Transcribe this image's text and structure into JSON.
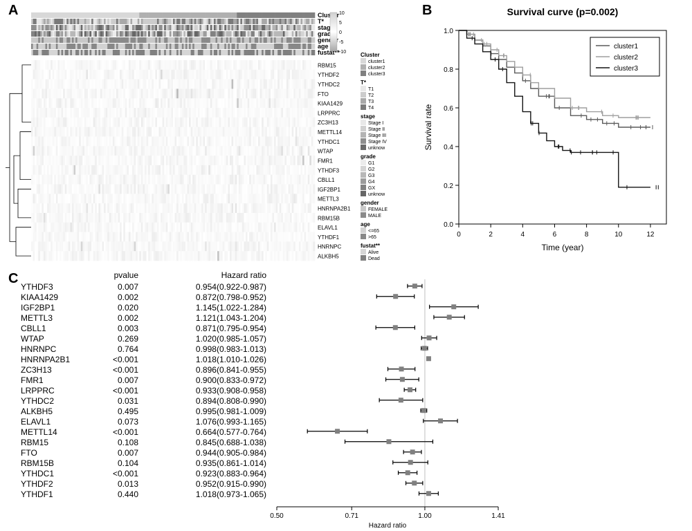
{
  "background_color": "#ffffff",
  "panel_labels": {
    "A": "A",
    "B": "B",
    "C": "C"
  },
  "panelA": {
    "type": "heatmap",
    "scale": {
      "min": -10,
      "mid": 0,
      "max": 10,
      "ticks": [
        -10,
        -5,
        0,
        5,
        10
      ],
      "high_color": "#d0d0d0",
      "mid_color": "#ffffff",
      "low_color": "#a8a8a8"
    },
    "annotation_tracks": [
      "Cluster",
      "T*",
      "stage",
      "grade",
      "gender",
      "age",
      "fustat**"
    ],
    "annotation_track_label_fontsize": 9,
    "annotation_track_label_fontweight": "bold",
    "gene_order": [
      "RBM15",
      "YTHDF2",
      "YTHDC2",
      "FTO",
      "KIAA1429",
      "LRPPRC",
      "ZC3H13",
      "METTL14",
      "YTHDC1",
      "WTAP",
      "FMR1",
      "YTHDF3",
      "CBLL1",
      "IGF2BP1",
      "METTL3",
      "HNRNPA2B1",
      "RBM15B",
      "ELAVL1",
      "YTHDF1",
      "HNRNPC",
      "ALKBH5"
    ],
    "gene_label_fontsize": 8,
    "dendrogram_color": "#000000",
    "legends": {
      "Cluster": {
        "title": "Cluster",
        "items": [
          "cluster1",
          "cluster2",
          "cluster3"
        ],
        "colors": [
          "#d8d8d8",
          "#b0b0b0",
          "#808080"
        ]
      },
      "T*": {
        "title": "T*",
        "items": [
          "T1",
          "T2",
          "T3",
          "T4"
        ],
        "colors": [
          "#e8e8e8",
          "#cccccc",
          "#a8a8a8",
          "#7a7a7a"
        ]
      },
      "stage": {
        "title": "stage",
        "items": [
          "Stage I",
          "Stage II",
          "Stage III",
          "Stage IV",
          "unknow"
        ],
        "colors": [
          "#e8e8e8",
          "#d0d0d0",
          "#b4b4b4",
          "#8e8e8e",
          "#6a6a6a"
        ]
      },
      "grade": {
        "title": "grade",
        "items": [
          "G1",
          "G2",
          "G3",
          "G4",
          "GX",
          "unknow"
        ],
        "colors": [
          "#ececec",
          "#d4d4d4",
          "#b8b8b8",
          "#9c9c9c",
          "#828282",
          "#666666"
        ]
      },
      "gender": {
        "title": "gender",
        "items": [
          "FEMALE",
          "MALE"
        ],
        "colors": [
          "#c8c8c8",
          "#8a8a8a"
        ]
      },
      "age": {
        "title": "age",
        "items": [
          "<=65",
          ">65"
        ],
        "colors": [
          "#d2d2d2",
          "#888888"
        ]
      },
      "fustat**": {
        "title": "fustat**",
        "items": [
          "Alive",
          "Dead"
        ],
        "colors": [
          "#d6d6d6",
          "#808080"
        ]
      }
    },
    "legend_title_fontsize": 8,
    "legend_item_fontsize": 7
  },
  "panelB": {
    "type": "line",
    "title": "Survival curve (p=0.002)",
    "title_fontsize": 14,
    "title_fontweight": "bold",
    "xlabel": "Time (year)",
    "ylabel": "Survival rate",
    "label_fontsize": 12,
    "tick_fontsize": 10,
    "xlim": [
      0,
      13
    ],
    "ylim": [
      0,
      1
    ],
    "xtick_step": 2,
    "ytick_step": 0.2,
    "axis_color": "#000000",
    "legend_border": "#000000",
    "legend_fontsize": 10,
    "series": [
      {
        "name": "cluster1",
        "color": "#5a5a5a",
        "points": [
          [
            0,
            1.0
          ],
          [
            0.5,
            0.98
          ],
          [
            1,
            0.95
          ],
          [
            1.5,
            0.92
          ],
          [
            2,
            0.88
          ],
          [
            2.5,
            0.85
          ],
          [
            3,
            0.81
          ],
          [
            3.5,
            0.78
          ],
          [
            4,
            0.74
          ],
          [
            4.5,
            0.7
          ],
          [
            5,
            0.66
          ],
          [
            6,
            0.6
          ],
          [
            7,
            0.56
          ],
          [
            8,
            0.54
          ],
          [
            9,
            0.52
          ],
          [
            10,
            0.5
          ],
          [
            12,
            0.5
          ]
        ]
      },
      {
        "name": "cluster2",
        "color": "#9e9e9e",
        "points": [
          [
            0,
            1.0
          ],
          [
            0.5,
            0.98
          ],
          [
            1,
            0.95
          ],
          [
            1.5,
            0.93
          ],
          [
            2,
            0.9
          ],
          [
            2.5,
            0.87
          ],
          [
            3,
            0.84
          ],
          [
            3.5,
            0.81
          ],
          [
            4,
            0.77
          ],
          [
            4.5,
            0.73
          ],
          [
            5,
            0.7
          ],
          [
            6,
            0.65
          ],
          [
            7,
            0.6
          ],
          [
            8,
            0.58
          ],
          [
            9,
            0.56
          ],
          [
            10,
            0.55
          ],
          [
            12,
            0.55
          ]
        ]
      },
      {
        "name": "cluster3",
        "color": "#121212",
        "points": [
          [
            0,
            1.0
          ],
          [
            0.5,
            0.96
          ],
          [
            1,
            0.93
          ],
          [
            1.5,
            0.89
          ],
          [
            2,
            0.85
          ],
          [
            2.5,
            0.8
          ],
          [
            3,
            0.73
          ],
          [
            3.5,
            0.66
          ],
          [
            4,
            0.58
          ],
          [
            4.5,
            0.52
          ],
          [
            5,
            0.47
          ],
          [
            5.5,
            0.43
          ],
          [
            6,
            0.4
          ],
          [
            6.5,
            0.38
          ],
          [
            7,
            0.37
          ],
          [
            8,
            0.37
          ],
          [
            9,
            0.37
          ],
          [
            10,
            0.19
          ],
          [
            12,
            0.19
          ]
        ]
      }
    ]
  },
  "panelC": {
    "type": "forest",
    "header_pvalue": "pvalue",
    "header_hr": "Hazard ratio",
    "xlabel": "Hazard ratio",
    "gene_fontsize": 12,
    "value_fontsize": 12,
    "xlabel_fontsize": 10,
    "tick_fontsize": 10,
    "refline_x": 1.0,
    "refline_color": "#c0c0c0",
    "whisker_color": "#000000",
    "box_color": "#808080",
    "box_size": 7,
    "xticks": [
      0.5,
      0.71,
      1.0,
      1.41
    ],
    "rows": [
      {
        "gene": "YTHDF3",
        "pvalue": "0.007",
        "hr_text": "0.954(0.922-0.987)",
        "hr": 0.954,
        "lo": 0.922,
        "hi": 0.987
      },
      {
        "gene": "KIAA1429",
        "pvalue": "0.002",
        "hr_text": "0.872(0.798-0.952)",
        "hr": 0.872,
        "lo": 0.798,
        "hi": 0.952
      },
      {
        "gene": "IGF2BP1",
        "pvalue": "0.020",
        "hr_text": "1.145(1.022-1.284)",
        "hr": 1.145,
        "lo": 1.022,
        "hi": 1.284
      },
      {
        "gene": "METTL3",
        "pvalue": "0.002",
        "hr_text": "1.121(1.043-1.204)",
        "hr": 1.121,
        "lo": 1.043,
        "hi": 1.204
      },
      {
        "gene": "CBLL1",
        "pvalue": "0.003",
        "hr_text": "0.871(0.795-0.954)",
        "hr": 0.871,
        "lo": 0.795,
        "hi": 0.954
      },
      {
        "gene": "WTAP",
        "pvalue": "0.269",
        "hr_text": "1.020(0.985-1.057)",
        "hr": 1.02,
        "lo": 0.985,
        "hi": 1.057
      },
      {
        "gene": "HNRNPC",
        "pvalue": "0.764",
        "hr_text": "0.998(0.983-1.013)",
        "hr": 0.998,
        "lo": 0.983,
        "hi": 1.013
      },
      {
        "gene": "HNRNPA2B1",
        "pvalue": "<0.001",
        "hr_text": "1.018(1.010-1.026)",
        "hr": 1.018,
        "lo": 1.01,
        "hi": 1.026
      },
      {
        "gene": "ZC3H13",
        "pvalue": "<0.001",
        "hr_text": "0.896(0.841-0.955)",
        "hr": 0.896,
        "lo": 0.841,
        "hi": 0.955
      },
      {
        "gene": "FMR1",
        "pvalue": "0.007",
        "hr_text": "0.900(0.833-0.972)",
        "hr": 0.9,
        "lo": 0.833,
        "hi": 0.972
      },
      {
        "gene": "LRPPRC",
        "pvalue": "<0.001",
        "hr_text": "0.933(0.908-0.958)",
        "hr": 0.933,
        "lo": 0.908,
        "hi": 0.958
      },
      {
        "gene": "YTHDC2",
        "pvalue": "0.031",
        "hr_text": "0.894(0.808-0.990)",
        "hr": 0.894,
        "lo": 0.808,
        "hi": 0.99
      },
      {
        "gene": "ALKBH5",
        "pvalue": "0.495",
        "hr_text": "0.995(0.981-1.009)",
        "hr": 0.995,
        "lo": 0.981,
        "hi": 1.009
      },
      {
        "gene": "ELAVL1",
        "pvalue": "0.073",
        "hr_text": "1.076(0.993-1.165)",
        "hr": 1.076,
        "lo": 0.993,
        "hi": 1.165
      },
      {
        "gene": "METTL14",
        "pvalue": "<0.001",
        "hr_text": "0.664(0.577-0.764)",
        "hr": 0.664,
        "lo": 0.577,
        "hi": 0.764
      },
      {
        "gene": "RBM15",
        "pvalue": "0.108",
        "hr_text": "0.845(0.688-1.038)",
        "hr": 0.845,
        "lo": 0.688,
        "hi": 1.038
      },
      {
        "gene": "FTO",
        "pvalue": "0.007",
        "hr_text": "0.944(0.905-0.984)",
        "hr": 0.944,
        "lo": 0.905,
        "hi": 0.984
      },
      {
        "gene": "RBM15B",
        "pvalue": "0.104",
        "hr_text": "0.935(0.861-1.014)",
        "hr": 0.935,
        "lo": 0.861,
        "hi": 1.014
      },
      {
        "gene": "YTHDC1",
        "pvalue": "<0.001",
        "hr_text": "0.923(0.883-0.964)",
        "hr": 0.923,
        "lo": 0.883,
        "hi": 0.964
      },
      {
        "gene": "YTHDF2",
        "pvalue": "0.013",
        "hr_text": "0.952(0.915-0.990)",
        "hr": 0.952,
        "lo": 0.915,
        "hi": 0.99
      },
      {
        "gene": "YTHDF1",
        "pvalue": "0.440",
        "hr_text": "1.018(0.973-1.065)",
        "hr": 1.018,
        "lo": 0.973,
        "hi": 1.065
      }
    ]
  }
}
